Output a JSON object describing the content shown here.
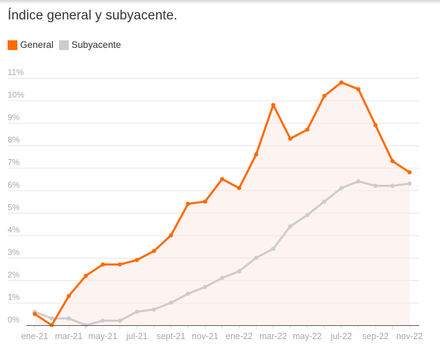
{
  "header": {
    "title": "Índice general y subyacente."
  },
  "legend": [
    {
      "label": "General",
      "color": "#ff6a00"
    },
    {
      "label": "Subyacente",
      "color": "#cccccc"
    }
  ],
  "colors": {
    "general": "#ff6a00",
    "subyacente": "#cccccc",
    "area_fill": "#fdf2ee",
    "grid": "#ebebeb",
    "baseline": "#555555",
    "tick_text": "#a8a8a8"
  },
  "chart_data": {
    "type": "line",
    "title": "Índice general y subyacente.",
    "xlabel": "",
    "ylabel": "",
    "ylim": [
      0,
      11
    ],
    "grid": true,
    "legend_position": "top-left",
    "y_ticks": [
      "0%",
      "1%",
      "2%",
      "3%",
      "4%",
      "5%",
      "6%",
      "7%",
      "8%",
      "9%",
      "10%",
      "11%"
    ],
    "x_tick_labels": [
      "ene-21",
      "mar-21",
      "may-21",
      "jul-21",
      "sept-21",
      "nov-21",
      "ene-22",
      "mar-22",
      "may-22",
      "jul-22",
      "sep-22",
      "nov-22"
    ],
    "categories": [
      "ene-21",
      "feb-21",
      "mar-21",
      "abr-21",
      "may-21",
      "jun-21",
      "jul-21",
      "ago-21",
      "sept-21",
      "oct-21",
      "nov-21",
      "dic-21",
      "ene-22",
      "feb-22",
      "mar-22",
      "abr-22",
      "may-22",
      "jun-22",
      "jul-22",
      "ago-22",
      "sep-22",
      "oct-22",
      "nov-22"
    ],
    "series": [
      {
        "name": "General",
        "values": [
          0.5,
          0.0,
          1.3,
          2.2,
          2.7,
          2.7,
          2.9,
          3.3,
          4.0,
          5.4,
          5.5,
          6.5,
          6.1,
          7.6,
          9.8,
          8.3,
          8.7,
          10.2,
          10.8,
          10.5,
          8.9,
          7.3,
          6.8
        ]
      },
      {
        "name": "Subyacente",
        "values": [
          0.6,
          0.3,
          0.3,
          0.0,
          0.2,
          0.2,
          0.6,
          0.7,
          1.0,
          1.4,
          1.7,
          2.1,
          2.4,
          3.0,
          3.4,
          4.4,
          4.9,
          5.5,
          6.1,
          6.4,
          6.2,
          6.2,
          6.3
        ]
      }
    ]
  }
}
